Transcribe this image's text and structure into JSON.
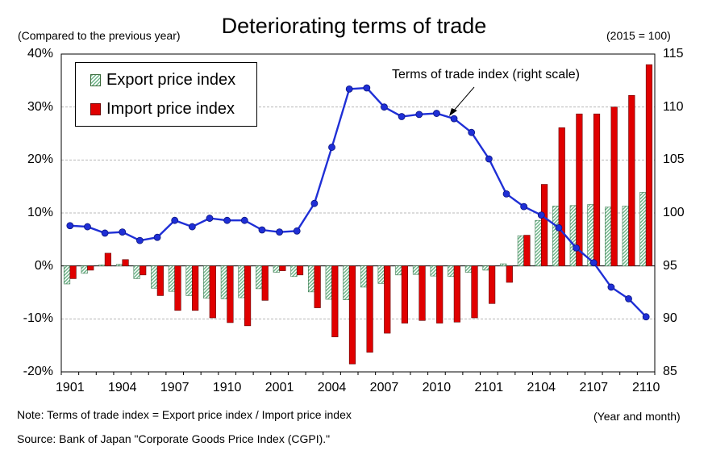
{
  "chart_data": {
    "type": "bar",
    "title": "Deteriorating terms of trade",
    "left_axis_label": "(Compared to the previous year)",
    "right_axis_label": "(2015 = 100)",
    "x_axis_label": "(Year and month)",
    "annotation": "Terms of trade index (right scale)",
    "note": "Note: Terms of trade index  =  Export price index / Import price index",
    "source": "Source: Bank of Japan \"Corporate Goods Price Index (CGPI).\"",
    "left_axis": {
      "ylim": [
        -20,
        40
      ],
      "ticks": [
        -20,
        -10,
        0,
        10,
        20,
        30,
        40
      ],
      "tick_labels": [
        "-20%",
        "-10%",
        "0%",
        "10%",
        "20%",
        "30%",
        "40%"
      ]
    },
    "right_axis": {
      "ylim": [
        85,
        115
      ],
      "ticks": [
        85,
        90,
        95,
        100,
        105,
        110,
        115
      ],
      "tick_labels": [
        "85",
        "90",
        "95",
        "100",
        "105",
        "110",
        "115"
      ]
    },
    "x_tick_labels": [
      "1901",
      "1904",
      "1907",
      "1910",
      "2001",
      "2004",
      "2007",
      "2010",
      "2101",
      "2104",
      "2107",
      "2110"
    ],
    "categories": [
      "1901",
      "1902",
      "1903",
      "1904",
      "1905",
      "1906",
      "1907",
      "1908",
      "1909",
      "1910",
      "1911",
      "1912",
      "2001",
      "2002",
      "2003",
      "2004",
      "2005",
      "2006",
      "2007",
      "2008",
      "2009",
      "2010",
      "2011",
      "2012",
      "2101",
      "2102",
      "2103",
      "2104",
      "2105",
      "2106",
      "2107",
      "2108",
      "2109",
      "2110"
    ],
    "series": [
      {
        "name": "Export price index",
        "kind": "bar",
        "axis": "left",
        "color": "#6fb58a",
        "values": [
          -3.4,
          -1.4,
          0.2,
          0.3,
          -2.4,
          -4.2,
          -4.8,
          -5.6,
          -6.1,
          -6.2,
          -6.0,
          -4.3,
          -1.2,
          -2.0,
          -4.9,
          -6.3,
          -6.4,
          -4.0,
          -3.3,
          -1.7,
          -1.6,
          -1.9,
          -2.0,
          -1.2,
          -0.8,
          0.4,
          5.7,
          8.6,
          11.3,
          11.4,
          11.6,
          11.1,
          11.3,
          13.9
        ]
      },
      {
        "name": "Import price index",
        "kind": "bar",
        "axis": "left",
        "color": "#e00000",
        "values": [
          -2.4,
          -0.8,
          2.4,
          1.2,
          -1.7,
          -5.6,
          -8.4,
          -8.4,
          -9.8,
          -10.7,
          -11.3,
          -6.5,
          -0.9,
          -1.7,
          -7.9,
          -13.4,
          -18.5,
          -16.3,
          -12.7,
          -10.8,
          -10.3,
          -10.8,
          -10.6,
          -9.8,
          -7.1,
          -3.1,
          5.8,
          15.4,
          26.1,
          28.7,
          28.7,
          30.0,
          32.2,
          38.0
        ]
      },
      {
        "name": "Terms of trade index",
        "kind": "line",
        "axis": "right",
        "color": "#1f2fd6",
        "values": [
          98.8,
          98.7,
          98.1,
          98.2,
          97.4,
          97.7,
          99.3,
          98.7,
          99.5,
          99.3,
          99.3,
          98.4,
          98.2,
          98.3,
          100.9,
          106.2,
          111.7,
          111.8,
          110.0,
          109.1,
          109.3,
          109.4,
          108.9,
          107.6,
          105.1,
          101.8,
          100.6,
          99.8,
          98.6,
          96.7,
          95.3,
          93.0,
          91.9,
          90.2
        ]
      }
    ]
  }
}
